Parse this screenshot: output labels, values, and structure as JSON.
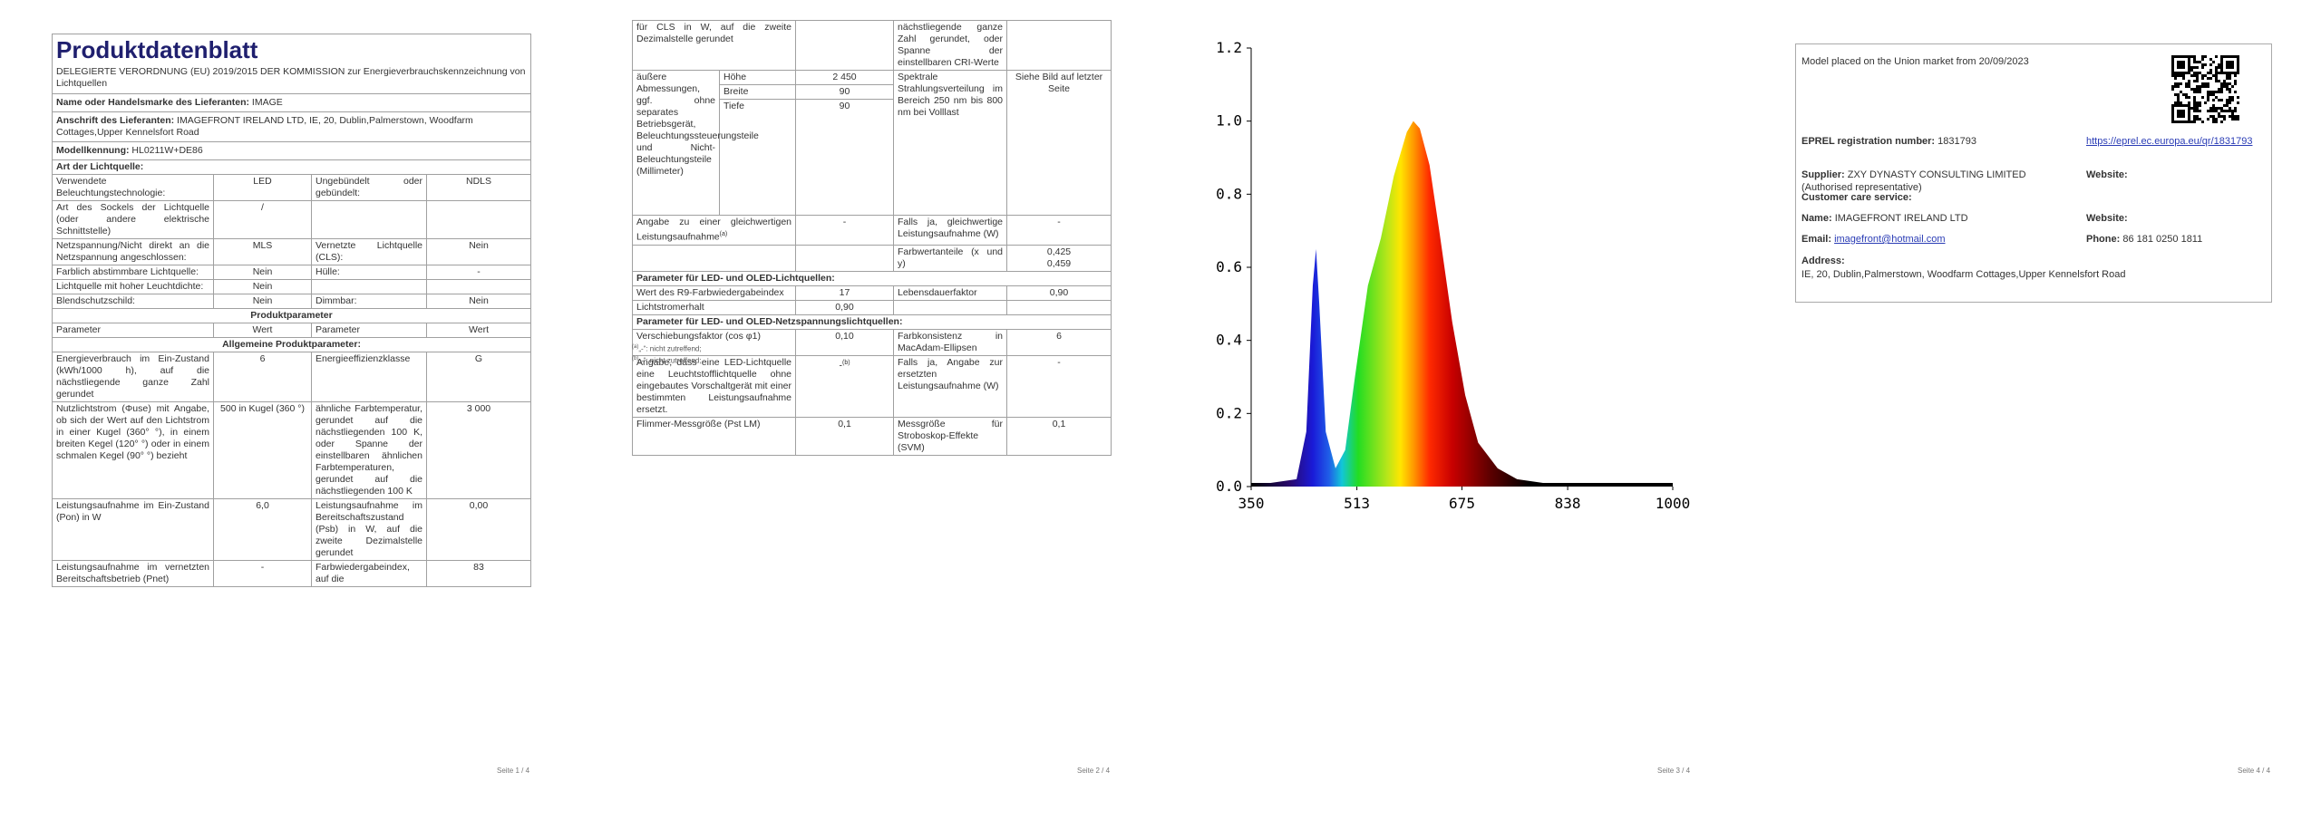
{
  "pages": [
    {
      "title": "Produktdatenblatt",
      "intro": "DELEGIERTE VERORDNUNG (EU) 2019/2015 DER KOMMISSION zur Energieverbrauchskennzeichnung von Lichtquellen",
      "rows": [
        {
          "label": "Name oder Handelsmarke des Lieferanten:",
          "value": "IMAGE"
        },
        {
          "label": "Anschrift des Lieferanten:",
          "value": "IMAGEFRONT IRELAND LTD, IE, 20, Dublin,Palmerstown, Woodfarm Cottages,Upper Kennelsfort Road"
        },
        {
          "label": "Modellkennung:",
          "value": "HL0211W+DE86"
        },
        {
          "heading": "Art der Lichtquelle:"
        },
        {
          "a": "Verwendete Beleuchtungstechnologie:",
          "b": "LED",
          "c": "Ungebündelt oder gebündelt:",
          "d": "NDLS"
        },
        {
          "a": "Art des Sockels der Lichtquelle (oder andere elektrische Schnittstelle)",
          "b": "/"
        },
        {
          "a": "Netzspannung/Nicht direkt an die Netzspannung angeschlossen:",
          "b": "MLS",
          "c": "Vernetzte Lichtquelle (CLS):",
          "d": "Nein"
        },
        {
          "a": "Farblich abstimmbare Lichtquelle:",
          "b": "Nein",
          "c": "Hülle:",
          "d": "-"
        },
        {
          "a": "Lichtquelle mit hoher Leuchtdichte:",
          "b": "Nein"
        },
        {
          "a": "Blendschutzschild:",
          "b": "Nein",
          "c": "Dimmbar:",
          "d": "Nein"
        },
        {
          "section": "Produktparameter"
        },
        {
          "a": "Parameter",
          "b": "Wert",
          "c": "Parameter",
          "d": "Wert"
        },
        {
          "section": "Allgemeine Produktparameter:"
        },
        {
          "a": "Energieverbrauch im Ein-Zustand (kWh/1000 h), auf die nächstliegende ganze Zahl gerundet",
          "b": "6",
          "c": "Energieeffizienzklasse",
          "d": "G"
        },
        {
          "a": "Nutzlichtstrom (Φuse) mit Angabe, ob sich der Wert auf den Lichtstrom in einer Kugel (360° °), in einem breiten Kegel (120° °) oder in einem schmalen Kegel (90° °) bezieht",
          "b": "500 in Kugel (360 °)",
          "c": "ähnliche Farbtemperatur, gerundet auf die nächstliegenden 100 K, oder Spanne der einstellbaren ähnlichen Farbtemperaturen, gerundet auf die nächstliegenden 100 K",
          "d": "3 000"
        },
        {
          "a": "Leistungsaufnahme im Ein-Zustand (Pon) in W",
          "b": "6,0",
          "c": "Leistungsaufnahme im Bereitschaftszustand (Psb) in W, auf die zweite Dezimalstelle gerundet",
          "d": "0,00"
        },
        {
          "a": "Leistungsaufnahme im vernetzten Bereitschaftsbetrieb (Pnet)",
          "b": "-",
          "c": "Farbwiedergabeindex, auf die",
          "d": "83"
        }
      ],
      "footer": "Seite 1 / 4"
    },
    {
      "rows": [
        {
          "a": "für CLS in W, auf die zweite Dezimalstelle gerundet",
          "c": "nächstliegende ganze Zahl gerundet, oder Spanne der einstellbaren CRI-Werte"
        },
        {
          "a": "äußere Abmessungen, ggf. ohne separates Betriebsgerät, Beleuchtungssteuerungsteile und Nicht-Beleuchtungsteile (Millimeter)",
          "dims": [
            {
              "name": "Höhe",
              "value": "2 450"
            },
            {
              "name": "Breite",
              "value": "90"
            },
            {
              "name": "Tiefe",
              "value": "90"
            }
          ],
          "c": "Spektrale Strahlungsverteilung im Bereich 250 nm bis 800 nm bei Volllast",
          "d": "Siehe Bild auf letzter Seite"
        },
        {
          "a": "Angabe zu einer gleichwertigen Leistungsaufnahme",
          "a_note": "(a)",
          "b": "-",
          "c": "Falls ja, gleichwertige Leistungsaufnahme (W)",
          "d": "-"
        },
        {
          "c": "Farbwertanteile (x und y)",
          "d": [
            "0,425",
            "0,459"
          ]
        },
        {
          "heading": "Parameter für LED- und OLED-Lichtquellen:"
        },
        {
          "a": "Wert des R9-Farbwiedergabeindex",
          "b": "17",
          "c": "Lebensdauerfaktor",
          "d": "0,90"
        },
        {
          "a": "Lichtstromerhalt",
          "b": "0,90"
        },
        {
          "heading": "Parameter für LED- und OLED-Netzspannungslichtquellen:"
        },
        {
          "a": "Verschiebungsfaktor (cos φ1)",
          "b": "0,10",
          "c": "Farbkonsistenz in MacAdam-Ellipsen",
          "d": "6"
        },
        {
          "a": "Angabe, dass eine LED-Lichtquelle eine Leuchtstofflichtquelle ohne eingebautes Vorschaltgerät mit einer bestimmten Leistungsaufnahme ersetzt.",
          "b": "-",
          "b_note": "(b)",
          "c": "Falls ja, Angabe zur ersetzten Leistungsaufnahme (W)",
          "d": "-"
        },
        {
          "a": "Flimmer-Messgröße (Pst LM)",
          "b": "0,1",
          "c": "Messgröße für Stroboskop-Effekte (SVM)",
          "d": "0,1"
        }
      ],
      "footnotes": [
        {
          "mark": "(a)",
          "text": "„-“: nicht zutreffend;"
        },
        {
          "mark": "(b)",
          "text": "„-“: nicht zutreffend;"
        }
      ],
      "footer": "Seite 2 / 4"
    },
    {
      "chart_data": {
        "type": "area",
        "x": [
          350,
          380,
          420,
          435,
          445,
          450,
          455,
          465,
          480,
          495,
          510,
          530,
          550,
          570,
          590,
          600,
          610,
          625,
          640,
          660,
          680,
          700,
          730,
          760,
          800,
          900,
          1000
        ],
        "values": [
          0.01,
          0.01,
          0.02,
          0.15,
          0.55,
          0.65,
          0.5,
          0.15,
          0.05,
          0.1,
          0.3,
          0.55,
          0.68,
          0.85,
          0.97,
          1.0,
          0.98,
          0.88,
          0.7,
          0.45,
          0.25,
          0.12,
          0.05,
          0.02,
          0.01,
          0.01,
          0.01
        ],
        "xlim": [
          350,
          1000
        ],
        "ylim": [
          0,
          1.2
        ],
        "xticks": [
          350,
          513,
          675,
          838,
          1000
        ],
        "yticks": [
          {
            "value": 0,
            "label": "0.0"
          },
          0.2,
          0.4,
          0.6,
          0.8,
          {
            "value": 1,
            "label": "1.0"
          },
          1.2
        ]
      },
      "footer": "Seite 3 / 4"
    },
    {
      "card": {
        "placed": "Model placed on the Union market from 20/09/2023",
        "eprel": {
          "label": "EPREL registration number:",
          "value": "1831793"
        },
        "link": "https://eprel.ec.europa.eu/qr/1831793",
        "supplier": {
          "label": "Supplier:",
          "value": "ZXY DYNASTY CONSULTING LIMITED (Authorised representative)"
        },
        "website1": "Website:",
        "care": "Customer care service:",
        "name": {
          "label": "Name:",
          "value": "IMAGEFRONT IRELAND LTD"
        },
        "website2": "Website:",
        "email": {
          "label": "Email:",
          "value": "imagefront@hotmail.com"
        },
        "phone": {
          "label": "Phone:",
          "value": "86 181 0250 1811"
        },
        "address": {
          "label": "Address:",
          "value": "IE, 20, Dublin,Palmerstown, Woodfarm Cottages,Upper Kennelsfort Road"
        }
      },
      "footer": "Seite 4 / 4"
    }
  ]
}
